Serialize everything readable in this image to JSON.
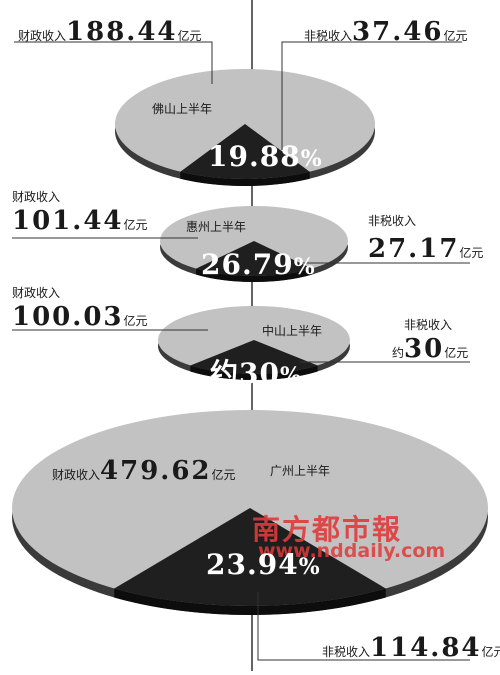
{
  "chart_data": [
    {
      "type": "pie",
      "title": "佛山上半年",
      "categories": [
        "财政收入",
        "非税收入"
      ],
      "values": [
        188.44,
        37.46
      ],
      "share_label": "19.88%",
      "fiscal": {
        "label": "财政收入",
        "value": "188.44",
        "unit": "亿元"
      },
      "nontax": {
        "label": "非税收入",
        "value": "37.46",
        "unit": "亿元"
      },
      "pct": {
        "num": "19.88",
        "sym": "%"
      }
    },
    {
      "type": "pie",
      "title": "惠州上半年",
      "categories": [
        "财政收入",
        "非税收入"
      ],
      "values": [
        101.44,
        27.17
      ],
      "share_label": "26.79%",
      "fiscal": {
        "label": "财政收入",
        "value": "101.44",
        "unit": "亿元"
      },
      "nontax": {
        "label": "非税收入",
        "value": "27.17",
        "unit": "亿元"
      },
      "pct": {
        "num": "26.79",
        "sym": "%"
      }
    },
    {
      "type": "pie",
      "title": "中山上半年",
      "categories": [
        "财政收入",
        "非税收入"
      ],
      "values": [
        100.03,
        30
      ],
      "share_label": "约30%",
      "fiscal": {
        "label": "财政收入",
        "value": "100.03",
        "unit": "亿元"
      },
      "nontax": {
        "label": "非税收入",
        "prefix": "约",
        "value": "30",
        "unit": "亿元"
      },
      "pct": {
        "num": "约30",
        "sym": "%"
      }
    },
    {
      "type": "pie",
      "title": "广州上半年",
      "categories": [
        "财政收入",
        "非税收入"
      ],
      "values": [
        479.62,
        114.84
      ],
      "share_label": "23.94%",
      "fiscal": {
        "label": "财政收入",
        "value": "479.62",
        "unit": "亿元"
      },
      "nontax": {
        "label": "非税收入",
        "value": "114.84",
        "unit": "亿元"
      },
      "pct": {
        "num": "23.94",
        "sym": "%"
      }
    }
  ],
  "colors": {
    "slice_fiscal": "#c2c2c2",
    "slice_nontax": "#1f1f1f",
    "rim": "#3a3a3a",
    "leader": "#333333"
  },
  "watermark": {
    "brand": "南方都市報",
    "url": "www.nddaily.com",
    "color": "#e03a3a"
  }
}
